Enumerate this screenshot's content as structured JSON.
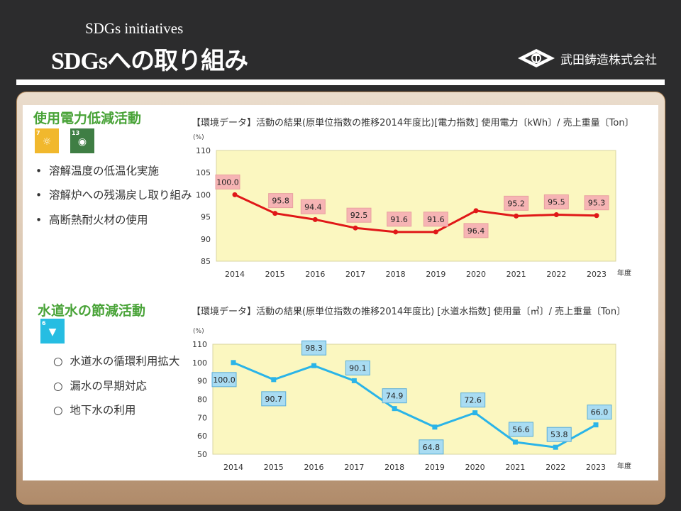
{
  "header": {
    "subtitle": "SDGs initiatives",
    "title": "SDGsへの取り組み",
    "company": "武田鋳造株式会社"
  },
  "sections": [
    {
      "heading": "使用電力低減活動",
      "sdg_icons": [
        {
          "number": "7",
          "color": "#f1b82d",
          "icon": "sun-icon"
        },
        {
          "number": "13",
          "color": "#3f7e44",
          "icon": "eye-earth-icon"
        }
      ],
      "items": [
        "溶解温度の低温化実施",
        "溶解炉への残湯戻し取り組み",
        "高断熱耐火材の使用"
      ]
    },
    {
      "heading": "水道水の節減活動",
      "sdg_icons": [
        {
          "number": "6",
          "color": "#26bde2",
          "icon": "water-icon"
        }
      ],
      "items": [
        "水道水の循環利用拡大",
        "漏水の早期対応",
        "地下水の利用"
      ]
    }
  ],
  "chart_data": [
    {
      "type": "line",
      "title": "【環境データ】活動の結果(原単位指数の推移2014年度比)[電力指数] 使用電力〔kWh〕/ 売上重量〔Ton〕",
      "ylabel": "(%)",
      "xlabel": "年度",
      "categories": [
        "2014",
        "2015",
        "2016",
        "2017",
        "2018",
        "2019",
        "2020",
        "2021",
        "2022",
        "2023"
      ],
      "values": [
        100.0,
        95.8,
        94.4,
        92.5,
        91.6,
        91.6,
        96.4,
        95.2,
        95.5,
        95.3
      ],
      "labels": [
        "100.0",
        "95.8",
        "94.4",
        "92.5",
        "91.6",
        "91.6",
        "96.4",
        "95.2",
        "95.5",
        "95.3"
      ],
      "ylim": [
        85,
        110
      ],
      "yticks": [
        "85",
        "90",
        "95",
        "100",
        "105",
        "110"
      ],
      "grid": false,
      "colors": {
        "line": "#e01818",
        "label_bg": "#f6b4b4",
        "plot_bg": "#fbf7c0"
      }
    },
    {
      "type": "line",
      "title": "【環境データ】活動の結果(原単位指数の推移2014年度比) [水道水指数] 使用量〔㎥〕/ 売上重量〔Ton〕",
      "ylabel": "(%)",
      "xlabel": "年度",
      "categories": [
        "2014",
        "2015",
        "2016",
        "2017",
        "2018",
        "2019",
        "2020",
        "2021",
        "2022",
        "2023"
      ],
      "values": [
        100.0,
        90.7,
        98.3,
        90.1,
        74.9,
        64.8,
        72.6,
        56.6,
        53.8,
        66.0
      ],
      "labels": [
        "100.0",
        "90.7",
        "98.3",
        "90.1",
        "74.9",
        "64.8",
        "72.6",
        "56.6",
        "53.8",
        "66.0"
      ],
      "ylim": [
        50,
        110
      ],
      "yticks": [
        "50",
        "60",
        "70",
        "80",
        "90",
        "100",
        "110"
      ],
      "grid": false,
      "colors": {
        "line": "#2ab4e8",
        "label_bg": "#a9dcf2",
        "plot_bg": "#fbf7c0"
      }
    }
  ]
}
